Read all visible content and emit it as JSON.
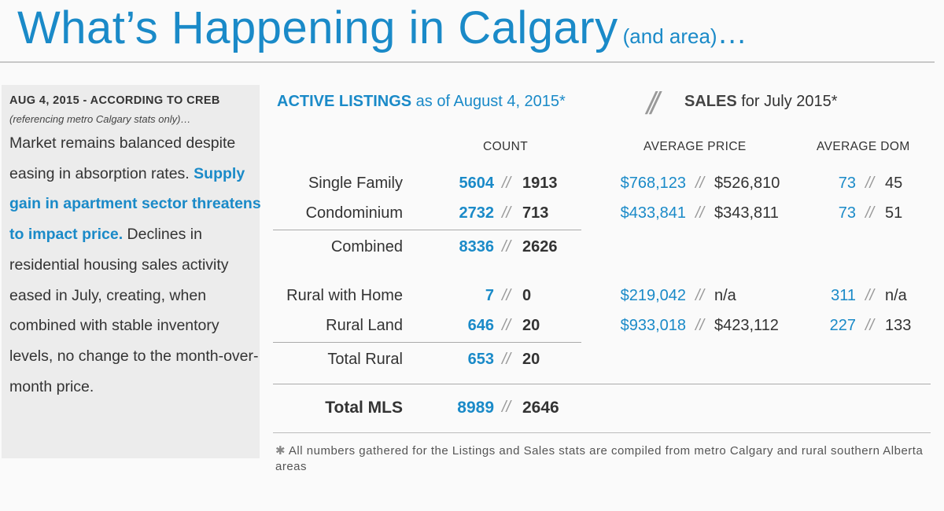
{
  "title": {
    "main": "What’s Happening in Calgary",
    "sub": "(and area)",
    "dots": "…"
  },
  "sidebar": {
    "date": "AUG 4, 2015 - ACCORDING TO CREB",
    "reference": "(referencing metro Calgary stats only)…",
    "body_pre": "Market remains balanced despite easing in absorption rates. ",
    "body_highlight": "Supply gain in apartment sector threatens to impact price.",
    "body_post": " Declines in residential housing sales activity eased in July, creating, when combined with stable inventory levels, no change to the month-over-month price."
  },
  "heading": {
    "active": "ACTIVE LISTINGS",
    "asof": " as of August 4, 2015*",
    "separator": "//",
    "sales": "SALES",
    "salesfor": " for July 2015*"
  },
  "columns": {
    "count": "COUNT",
    "price": "AVERAGE PRICE",
    "dom": "AVERAGE DOM"
  },
  "separator": "//",
  "rows": [
    {
      "label": "Single Family",
      "count_active": "5604",
      "count_sales": "1913",
      "price_active": "$768,123",
      "price_sales": "$526,810",
      "dom_active": "73",
      "dom_sales": "45"
    },
    {
      "label": "Condominium",
      "count_active": "2732",
      "count_sales": "713",
      "price_active": "$433,841",
      "price_sales": "$343,811",
      "dom_active": "73",
      "dom_sales": "51"
    },
    {
      "label": "Combined",
      "count_active": "8336",
      "count_sales": "2626"
    },
    {
      "label": "Rural with Home",
      "count_active": "7",
      "count_sales": "0",
      "price_active": "$219,042",
      "price_sales": "n/a",
      "dom_active": "311",
      "dom_sales": "n/a"
    },
    {
      "label": "Rural Land",
      "count_active": "646",
      "count_sales": "20",
      "price_active": "$933,018",
      "price_sales": "$423,112",
      "dom_active": "227",
      "dom_sales": "133"
    },
    {
      "label": "Total Rural",
      "count_active": "653",
      "count_sales": "20"
    },
    {
      "label": "Total MLS",
      "count_active": "8989",
      "count_sales": "2646"
    }
  ],
  "footnote": {
    "star": "✱",
    "text": "All numbers gathered for the Listings and Sales stats are compiled from metro Calgary and rural southern Alberta areas"
  }
}
